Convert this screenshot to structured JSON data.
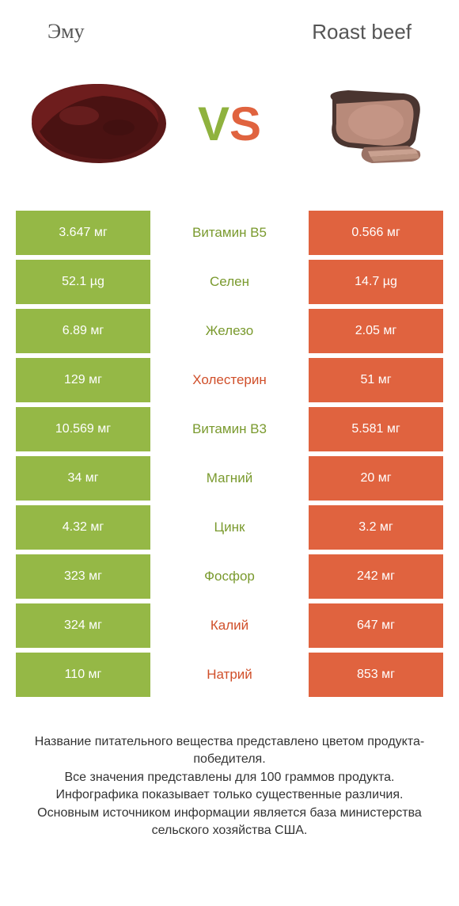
{
  "colors": {
    "left": "#95b846",
    "right": "#e0633f",
    "left_text": "#7a9a2e",
    "right_text": "#d04f2a",
    "bg": "#ffffff"
  },
  "header": {
    "left_title": "Эму",
    "right_title": "Roast beef",
    "vs_v": "V",
    "vs_s": "S"
  },
  "rows": [
    {
      "left": "3.647 мг",
      "label": "Витамин B5",
      "right": "0.566 мг",
      "winner": "left"
    },
    {
      "left": "52.1 µg",
      "label": "Селен",
      "right": "14.7 µg",
      "winner": "left"
    },
    {
      "left": "6.89 мг",
      "label": "Железо",
      "right": "2.05 мг",
      "winner": "left"
    },
    {
      "left": "129 мг",
      "label": "Холестерин",
      "right": "51 мг",
      "winner": "right"
    },
    {
      "left": "10.569 мг",
      "label": "Витамин B3",
      "right": "5.581 мг",
      "winner": "left"
    },
    {
      "left": "34 мг",
      "label": "Магний",
      "right": "20 мг",
      "winner": "left"
    },
    {
      "left": "4.32 мг",
      "label": "Цинк",
      "right": "3.2 мг",
      "winner": "left"
    },
    {
      "left": "323 мг",
      "label": "Фосфор",
      "right": "242 мг",
      "winner": "left"
    },
    {
      "left": "324 мг",
      "label": "Калий",
      "right": "647 мг",
      "winner": "right"
    },
    {
      "left": "110 мг",
      "label": "Натрий",
      "right": "853 мг",
      "winner": "right"
    }
  ],
  "footer": {
    "line1": "Название питательного вещества представлено цветом продукта-победителя.",
    "line2": "Все значения представлены для 100 граммов продукта.",
    "line3": "Инфографика показывает только существенные различия.",
    "line4": "Основным источником информации является база министерства сельского хозяйства США."
  }
}
